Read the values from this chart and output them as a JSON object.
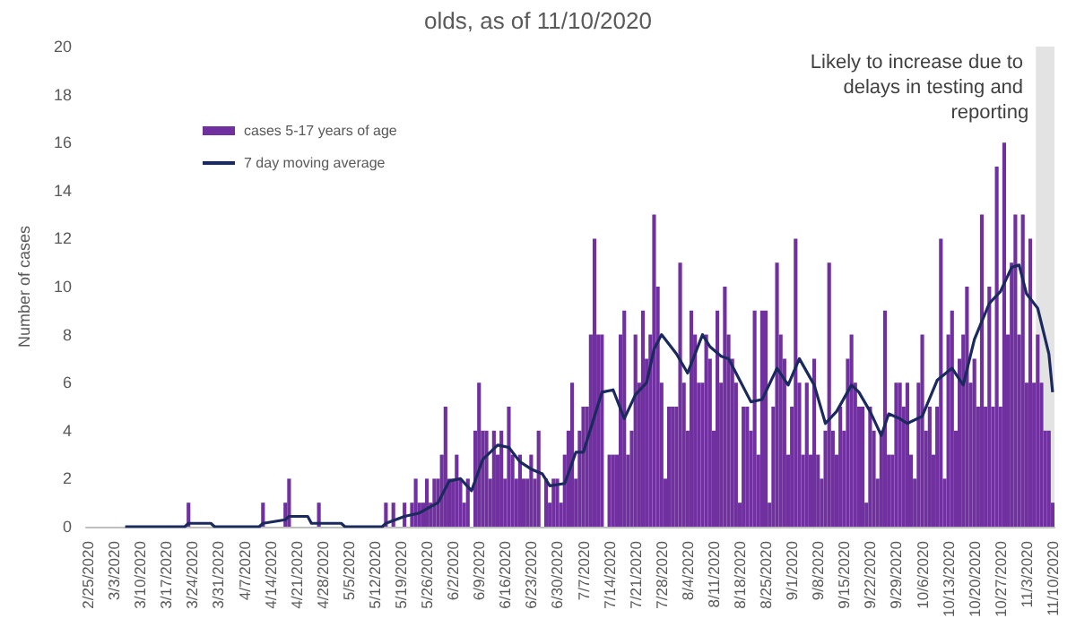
{
  "chart_data": {
    "type": "bar",
    "title": "olds, as of 11/10/2020",
    "ylabel": "Number of cases",
    "x": [
      "2020-02-25",
      "2020-02-26",
      "2020-02-27",
      "2020-02-28",
      "2020-02-29",
      "2020-03-01",
      "2020-03-02",
      "2020-03-03",
      "2020-03-04",
      "2020-03-05",
      "2020-03-06",
      "2020-03-07",
      "2020-03-08",
      "2020-03-09",
      "2020-03-10",
      "2020-03-11",
      "2020-03-12",
      "2020-03-13",
      "2020-03-14",
      "2020-03-15",
      "2020-03-16",
      "2020-03-17",
      "2020-03-18",
      "2020-03-19",
      "2020-03-20",
      "2020-03-21",
      "2020-03-22",
      "2020-03-23",
      "2020-03-24",
      "2020-03-25",
      "2020-03-26",
      "2020-03-27",
      "2020-03-28",
      "2020-03-29",
      "2020-03-30",
      "2020-03-31",
      "2020-04-01",
      "2020-04-02",
      "2020-04-03",
      "2020-04-04",
      "2020-04-05",
      "2020-04-06",
      "2020-04-07",
      "2020-04-08",
      "2020-04-09",
      "2020-04-10",
      "2020-04-11",
      "2020-04-12",
      "2020-04-13",
      "2020-04-14",
      "2020-04-15",
      "2020-04-16",
      "2020-04-17",
      "2020-04-18",
      "2020-04-19",
      "2020-04-20",
      "2020-04-21",
      "2020-04-22",
      "2020-04-23",
      "2020-04-24",
      "2020-04-25",
      "2020-04-26",
      "2020-04-27",
      "2020-04-28",
      "2020-04-29",
      "2020-04-30",
      "2020-05-01",
      "2020-05-02",
      "2020-05-03",
      "2020-05-04",
      "2020-05-05",
      "2020-05-06",
      "2020-05-07",
      "2020-05-08",
      "2020-05-09",
      "2020-05-10",
      "2020-05-11",
      "2020-05-12",
      "2020-05-13",
      "2020-05-14",
      "2020-05-15",
      "2020-05-16",
      "2020-05-17",
      "2020-05-18",
      "2020-05-19",
      "2020-05-20",
      "2020-05-21",
      "2020-05-22",
      "2020-05-23",
      "2020-05-24",
      "2020-05-25",
      "2020-05-26",
      "2020-05-27",
      "2020-05-28",
      "2020-05-29",
      "2020-05-30",
      "2020-05-31",
      "2020-06-01",
      "2020-06-02",
      "2020-06-03",
      "2020-06-04",
      "2020-06-05",
      "2020-06-06",
      "2020-06-07",
      "2020-06-08",
      "2020-06-09",
      "2020-06-10",
      "2020-06-11",
      "2020-06-12",
      "2020-06-13",
      "2020-06-14",
      "2020-06-15",
      "2020-06-16",
      "2020-06-17",
      "2020-06-18",
      "2020-06-19",
      "2020-06-20",
      "2020-06-21",
      "2020-06-22",
      "2020-06-23",
      "2020-06-24",
      "2020-06-25",
      "2020-06-26",
      "2020-06-27",
      "2020-06-28",
      "2020-06-29",
      "2020-06-30",
      "2020-07-01",
      "2020-07-02",
      "2020-07-03",
      "2020-07-04",
      "2020-07-05",
      "2020-07-06",
      "2020-07-07",
      "2020-07-08",
      "2020-07-09",
      "2020-07-10",
      "2020-07-11",
      "2020-07-12",
      "2020-07-13",
      "2020-07-14",
      "2020-07-15",
      "2020-07-16",
      "2020-07-17",
      "2020-07-18",
      "2020-07-19",
      "2020-07-20",
      "2020-07-21",
      "2020-07-22",
      "2020-07-23",
      "2020-07-24",
      "2020-07-25",
      "2020-07-26",
      "2020-07-27",
      "2020-07-28",
      "2020-07-29",
      "2020-07-30",
      "2020-07-31",
      "2020-08-01",
      "2020-08-02",
      "2020-08-03",
      "2020-08-04",
      "2020-08-05",
      "2020-08-06",
      "2020-08-07",
      "2020-08-08",
      "2020-08-09",
      "2020-08-10",
      "2020-08-11",
      "2020-08-12",
      "2020-08-13",
      "2020-08-14",
      "2020-08-15",
      "2020-08-16",
      "2020-08-17",
      "2020-08-18",
      "2020-08-19",
      "2020-08-20",
      "2020-08-21",
      "2020-08-22",
      "2020-08-23",
      "2020-08-24",
      "2020-08-25",
      "2020-08-26",
      "2020-08-27",
      "2020-08-28",
      "2020-08-29",
      "2020-08-30",
      "2020-08-31",
      "2020-09-01",
      "2020-09-02",
      "2020-09-03",
      "2020-09-04",
      "2020-09-05",
      "2020-09-06",
      "2020-09-07",
      "2020-09-08",
      "2020-09-09",
      "2020-09-10",
      "2020-09-11",
      "2020-09-12",
      "2020-09-13",
      "2020-09-14",
      "2020-09-15",
      "2020-09-16",
      "2020-09-17",
      "2020-09-18",
      "2020-09-19",
      "2020-09-20",
      "2020-09-21",
      "2020-09-22",
      "2020-09-23",
      "2020-09-24",
      "2020-09-25",
      "2020-09-26",
      "2020-09-27",
      "2020-09-28",
      "2020-09-29",
      "2020-09-30",
      "2020-10-01",
      "2020-10-02",
      "2020-10-03",
      "2020-10-04",
      "2020-10-05",
      "2020-10-06",
      "2020-10-07",
      "2020-10-08",
      "2020-10-09",
      "2020-10-10",
      "2020-10-11",
      "2020-10-12",
      "2020-10-13",
      "2020-10-14",
      "2020-10-15",
      "2020-10-16",
      "2020-10-17",
      "2020-10-18",
      "2020-10-19",
      "2020-10-20",
      "2020-10-21",
      "2020-10-22",
      "2020-10-23",
      "2020-10-24",
      "2020-10-25",
      "2020-10-26",
      "2020-10-27",
      "2020-10-28",
      "2020-10-29",
      "2020-10-30",
      "2020-10-31",
      "2020-11-01",
      "2020-11-02",
      "2020-11-03",
      "2020-11-04",
      "2020-11-05",
      "2020-11-06",
      "2020-11-07",
      "2020-11-08",
      "2020-11-09",
      "2020-11-10"
    ],
    "series": [
      {
        "name": "cases 5-17 years of age",
        "color": "#7030a0",
        "values": [
          0,
          0,
          0,
          0,
          0,
          0,
          0,
          0,
          0,
          0,
          0,
          0,
          0,
          0,
          0,
          0,
          0,
          0,
          0,
          0,
          0,
          0,
          0,
          0,
          0,
          0,
          0,
          1,
          0,
          0,
          0,
          0,
          0,
          0,
          0,
          0,
          0,
          0,
          0,
          0,
          0,
          0,
          0,
          0,
          0,
          0,
          0,
          1,
          0,
          0,
          0,
          0,
          0,
          1,
          2,
          0,
          0,
          0,
          0,
          0,
          0,
          0,
          1,
          0,
          0,
          0,
          0,
          0,
          0,
          0,
          0,
          0,
          0,
          0,
          0,
          0,
          0,
          0,
          0,
          0,
          1,
          0,
          1,
          0,
          0,
          1,
          0,
          1,
          2,
          1,
          1,
          2,
          1,
          2,
          2,
          3,
          5,
          2,
          2,
          3,
          2,
          1,
          2,
          0,
          4,
          6,
          4,
          4,
          2,
          4,
          3,
          4,
          2,
          5,
          3,
          2,
          3,
          2,
          2,
          3,
          2,
          4,
          0,
          2,
          1,
          2,
          2,
          1,
          3,
          4,
          6,
          2,
          4,
          5,
          5,
          8,
          12,
          8,
          8,
          0,
          3,
          3,
          3,
          8,
          9,
          3,
          4,
          8,
          6,
          9,
          7,
          8,
          13,
          10,
          6,
          2,
          5,
          5,
          5,
          11,
          6,
          4,
          9,
          8,
          6,
          6,
          8,
          7,
          4,
          9,
          6,
          10,
          8,
          7,
          6,
          1,
          5,
          5,
          4,
          9,
          3,
          9,
          9,
          1,
          5,
          11,
          8,
          7,
          3,
          5,
          12,
          6,
          3,
          6,
          3,
          7,
          3,
          2,
          4,
          11,
          4,
          3,
          5,
          4,
          7,
          8,
          6,
          5,
          5,
          1,
          5,
          4,
          2,
          4,
          9,
          3,
          3,
          6,
          6,
          5,
          6,
          3,
          2,
          6,
          8,
          4,
          5,
          3,
          5,
          12,
          2,
          8,
          9,
          4,
          7,
          8,
          10,
          6,
          7,
          5,
          13,
          5,
          10,
          5,
          15,
          5,
          16,
          8,
          11,
          13,
          8,
          13,
          6,
          12,
          6,
          8,
          6,
          4,
          4,
          1
        ]
      },
      {
        "name": "7 day moving average",
        "type": "line",
        "color": "#1b2a5e",
        "x": [
          "2020-03-06",
          "2020-03-22",
          "2020-03-23",
          "2020-03-29",
          "2020-03-30",
          "2020-04-11",
          "2020-04-12",
          "2020-04-18",
          "2020-04-19",
          "2020-04-24",
          "2020-04-25",
          "2020-04-27",
          "2020-05-03",
          "2020-05-04",
          "2020-05-14",
          "2020-05-15",
          "2020-05-20",
          "2020-05-24",
          "2020-05-29",
          "2020-06-01",
          "2020-06-04",
          "2020-06-07",
          "2020-06-10",
          "2020-06-14",
          "2020-06-17",
          "2020-06-20",
          "2020-06-23",
          "2020-06-26",
          "2020-06-28",
          "2020-07-02",
          "2020-07-05",
          "2020-07-07",
          "2020-07-10",
          "2020-07-12",
          "2020-07-15",
          "2020-07-18",
          "2020-07-21",
          "2020-07-24",
          "2020-07-26",
          "2020-07-28",
          "2020-08-01",
          "2020-08-04",
          "2020-08-08",
          "2020-08-10",
          "2020-08-13",
          "2020-08-15",
          "2020-08-18",
          "2020-08-21",
          "2020-08-24",
          "2020-08-28",
          "2020-08-31",
          "2020-09-03",
          "2020-09-07",
          "2020-09-10",
          "2020-09-13",
          "2020-09-17",
          "2020-09-19",
          "2020-09-22",
          "2020-09-25",
          "2020-09-27",
          "2020-09-30",
          "2020-10-02",
          "2020-10-06",
          "2020-10-10",
          "2020-10-14",
          "2020-10-17",
          "2020-10-20",
          "2020-10-24",
          "2020-10-27",
          "2020-10-30",
          "2020-11-01",
          "2020-11-03",
          "2020-11-06",
          "2020-11-09",
          "2020-11-10"
        ],
        "values": [
          0,
          0,
          0.14,
          0.14,
          0,
          0,
          0.14,
          0.29,
          0.43,
          0.43,
          0.14,
          0.14,
          0.14,
          0,
          0,
          0.14,
          0.43,
          0.57,
          1.0,
          1.9,
          2.0,
          1.5,
          2.8,
          3.4,
          3.3,
          2.7,
          2.4,
          2.2,
          1.7,
          1.8,
          3.1,
          3.1,
          4.6,
          5.6,
          5.7,
          4.5,
          5.5,
          6.0,
          7.4,
          8.0,
          7.2,
          6.4,
          8.0,
          7.5,
          7.1,
          7.0,
          6.1,
          5.2,
          5.3,
          6.6,
          5.9,
          7.0,
          5.9,
          4.3,
          4.8,
          5.9,
          5.6,
          4.8,
          3.8,
          4.7,
          4.5,
          4.3,
          4.6,
          6.1,
          6.6,
          5.9,
          7.8,
          9.3,
          9.8,
          10.8,
          10.9,
          9.7,
          9.1,
          7.2,
          5.6
        ]
      }
    ],
    "xlim": [
      "2020-02-24T12:00",
      "2020-11-10T12:00"
    ],
    "xticks": [
      {
        "value": "2020-02-25",
        "label": "2/25/2020"
      },
      {
        "value": "2020-03-03",
        "label": "3/3/2020"
      },
      {
        "value": "2020-03-10",
        "label": "3/10/2020"
      },
      {
        "value": "2020-03-17",
        "label": "3/17/2020"
      },
      {
        "value": "2020-03-24",
        "label": "3/24/2020"
      },
      {
        "value": "2020-03-31",
        "label": "3/31/2020"
      },
      {
        "value": "2020-04-07",
        "label": "4/7/2020"
      },
      {
        "value": "2020-04-14",
        "label": "4/14/2020"
      },
      {
        "value": "2020-04-21",
        "label": "4/21/2020"
      },
      {
        "value": "2020-04-28",
        "label": "4/28/2020"
      },
      {
        "value": "2020-05-05",
        "label": "5/5/2020"
      },
      {
        "value": "2020-05-12",
        "label": "5/12/2020"
      },
      {
        "value": "2020-05-19",
        "label": "5/19/2020"
      },
      {
        "value": "2020-05-26",
        "label": "5/26/2020"
      },
      {
        "value": "2020-06-02",
        "label": "6/2/2020"
      },
      {
        "value": "2020-06-09",
        "label": "6/9/2020"
      },
      {
        "value": "2020-06-16",
        "label": "6/16/2020"
      },
      {
        "value": "2020-06-23",
        "label": "6/23/2020"
      },
      {
        "value": "2020-06-30",
        "label": "6/30/2020"
      },
      {
        "value": "2020-07-07",
        "label": "7/7/2020"
      },
      {
        "value": "2020-07-14",
        "label": "7/14/2020"
      },
      {
        "value": "2020-07-21",
        "label": "7/21/2020"
      },
      {
        "value": "2020-07-28",
        "label": "7/28/2020"
      },
      {
        "value": "2020-08-04",
        "label": "8/4/2020"
      },
      {
        "value": "2020-08-11",
        "label": "8/11/2020"
      },
      {
        "value": "2020-08-18",
        "label": "8/18/2020"
      },
      {
        "value": "2020-08-25",
        "label": "8/25/2020"
      },
      {
        "value": "2020-09-01",
        "label": "9/1/2020"
      },
      {
        "value": "2020-09-08",
        "label": "9/8/2020"
      },
      {
        "value": "2020-09-15",
        "label": "9/15/2020"
      },
      {
        "value": "2020-09-22",
        "label": "9/22/2020"
      },
      {
        "value": "2020-09-29",
        "label": "9/29/2020"
      },
      {
        "value": "2020-10-06",
        "label": "10/6/2020"
      },
      {
        "value": "2020-10-13",
        "label": "10/13/2020"
      },
      {
        "value": "2020-10-20",
        "label": "10/20/2020"
      },
      {
        "value": "2020-10-27",
        "label": "10/27/2020"
      },
      {
        "value": "2020-11-03",
        "label": "11/3/2020"
      },
      {
        "value": "2020-11-10",
        "label": "11/10/2020"
      }
    ],
    "ylim": [
      0,
      20
    ],
    "yticks": [
      0,
      2,
      4,
      6,
      8,
      10,
      12,
      14,
      16,
      18,
      20
    ],
    "bands": [
      {
        "axis": "x",
        "from": "2020-11-05T12:00",
        "to": "2020-11-10T12:00",
        "label": "Likely to increase due to delays in testing and reporting",
        "color": "#d9d9d9"
      }
    ],
    "grid": false,
    "legend": "top left",
    "marker": "none",
    "line_style": "solid"
  }
}
